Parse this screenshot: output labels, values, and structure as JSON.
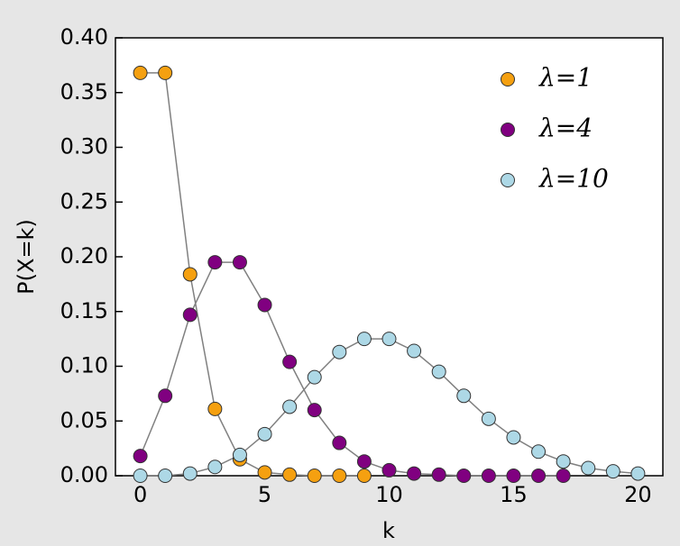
{
  "chart_data": {
    "type": "line",
    "xlabel": "k",
    "ylabel": "P(X=k)",
    "xlim": [
      -1,
      21
    ],
    "ylim": [
      0,
      0.4
    ],
    "xticks": [
      0,
      5,
      10,
      15,
      20
    ],
    "yticks": [
      {
        "value": 0,
        "label": "0.00"
      },
      {
        "value": 0.05,
        "label": "0.05"
      },
      {
        "value": 0.1,
        "label": "0.10"
      },
      {
        "value": 0.15,
        "label": "0.15"
      },
      {
        "value": 0.2,
        "label": "0.20"
      },
      {
        "value": 0.25,
        "label": "0.25"
      },
      {
        "value": 0.3,
        "label": "0.30"
      },
      {
        "value": 0.35,
        "label": "0.35"
      },
      {
        "value": 0.4,
        "label": "0.40"
      }
    ],
    "legend": "upper right",
    "line_color": "#808080",
    "series": [
      {
        "name": "λ=1",
        "color": "#f5a010",
        "x": [
          0,
          1,
          2,
          3,
          4,
          5,
          6,
          7,
          8,
          9
        ],
        "values": [
          0.368,
          0.368,
          0.184,
          0.061,
          0.015,
          0.003,
          0.001,
          0,
          0,
          0
        ]
      },
      {
        "name": "λ=4",
        "color": "#800080",
        "x": [
          0,
          1,
          2,
          3,
          4,
          5,
          6,
          7,
          8,
          9,
          10,
          11,
          12,
          13,
          14,
          15,
          16,
          17
        ],
        "values": [
          0.018,
          0.073,
          0.147,
          0.195,
          0.195,
          0.156,
          0.104,
          0.06,
          0.03,
          0.013,
          0.005,
          0.002,
          0.001,
          0,
          0,
          0,
          0,
          0
        ]
      },
      {
        "name": "λ=10",
        "color": "#add8e6",
        "x": [
          0,
          1,
          2,
          3,
          4,
          5,
          6,
          7,
          8,
          9,
          10,
          11,
          12,
          13,
          14,
          15,
          16,
          17,
          18,
          19,
          20
        ],
        "values": [
          0,
          0,
          0.002,
          0.008,
          0.019,
          0.038,
          0.063,
          0.09,
          0.113,
          0.125,
          0.125,
          0.114,
          0.095,
          0.073,
          0.052,
          0.035,
          0.022,
          0.013,
          0.007,
          0.004,
          0.002
        ]
      }
    ]
  }
}
